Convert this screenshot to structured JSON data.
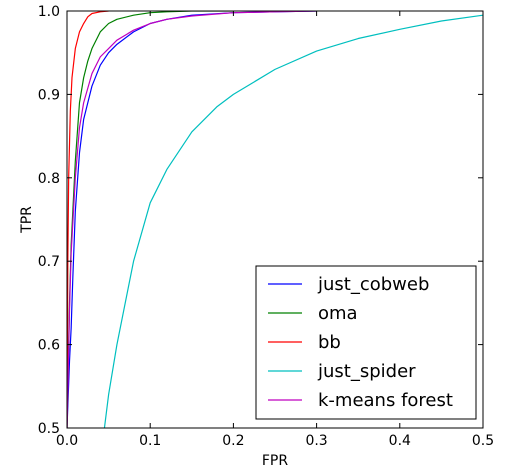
{
  "chart_data": {
    "type": "line",
    "xlabel": "FPR",
    "ylabel": "TPR",
    "xlim": [
      0.0,
      0.5
    ],
    "ylim": [
      0.5,
      1.0
    ],
    "xticks": [
      0.0,
      0.1,
      0.2,
      0.3,
      0.4,
      0.5
    ],
    "yticks": [
      0.5,
      0.6,
      0.7,
      0.8,
      0.9,
      1.0
    ],
    "xtick_labels": [
      "0.0",
      "0.1",
      "0.2",
      "0.3",
      "0.4",
      "0.5"
    ],
    "ytick_labels": [
      "0.5",
      "0.6",
      "0.7",
      "0.8",
      "0.9",
      "1.0"
    ],
    "grid": false,
    "legend_position": "bottom-right",
    "series": [
      {
        "name": "just_cobweb",
        "color": "#0000ff",
        "x": [
          0.0,
          0.003,
          0.005,
          0.007,
          0.01,
          0.015,
          0.02,
          0.025,
          0.03,
          0.04,
          0.05,
          0.06,
          0.08,
          0.1,
          0.12,
          0.15,
          0.2,
          0.25,
          0.3
        ],
        "y": [
          0.5,
          0.58,
          0.62,
          0.68,
          0.76,
          0.83,
          0.87,
          0.89,
          0.91,
          0.935,
          0.95,
          0.96,
          0.975,
          0.985,
          0.99,
          0.995,
          0.998,
          0.999,
          1.0
        ]
      },
      {
        "name": "oma",
        "color": "#008000",
        "x": [
          0.0,
          0.003,
          0.005,
          0.01,
          0.015,
          0.02,
          0.025,
          0.03,
          0.04,
          0.05,
          0.06,
          0.08,
          0.1,
          0.12,
          0.15,
          0.2
        ],
        "y": [
          0.5,
          0.65,
          0.72,
          0.82,
          0.89,
          0.92,
          0.94,
          0.955,
          0.975,
          0.985,
          0.99,
          0.995,
          0.998,
          0.999,
          1.0,
          1.0
        ]
      },
      {
        "name": "bb",
        "color": "#ff0000",
        "x": [
          0.0,
          0.001,
          0.002,
          0.004,
          0.006,
          0.01,
          0.015,
          0.02,
          0.025,
          0.03,
          0.04,
          0.05
        ],
        "y": [
          0.5,
          0.7,
          0.8,
          0.88,
          0.92,
          0.955,
          0.975,
          0.985,
          0.993,
          0.997,
          0.999,
          1.0
        ]
      },
      {
        "name": "just_spider",
        "color": "#00bfbf",
        "x": [
          0.045,
          0.05,
          0.06,
          0.07,
          0.08,
          0.1,
          0.12,
          0.15,
          0.18,
          0.2,
          0.25,
          0.3,
          0.35,
          0.4,
          0.45,
          0.5
        ],
        "y": [
          0.5,
          0.54,
          0.6,
          0.65,
          0.7,
          0.77,
          0.81,
          0.855,
          0.885,
          0.9,
          0.93,
          0.952,
          0.967,
          0.978,
          0.988,
          0.995
        ]
      },
      {
        "name": "k-means forest",
        "color": "#bf00bf",
        "x": [
          0.0,
          0.003,
          0.005,
          0.01,
          0.015,
          0.02,
          0.03,
          0.04,
          0.05,
          0.06,
          0.08,
          0.1,
          0.12,
          0.15,
          0.2,
          0.25,
          0.3
        ],
        "y": [
          0.5,
          0.64,
          0.71,
          0.8,
          0.86,
          0.89,
          0.925,
          0.945,
          0.955,
          0.965,
          0.977,
          0.985,
          0.99,
          0.994,
          0.998,
          0.999,
          1.0
        ]
      }
    ]
  }
}
